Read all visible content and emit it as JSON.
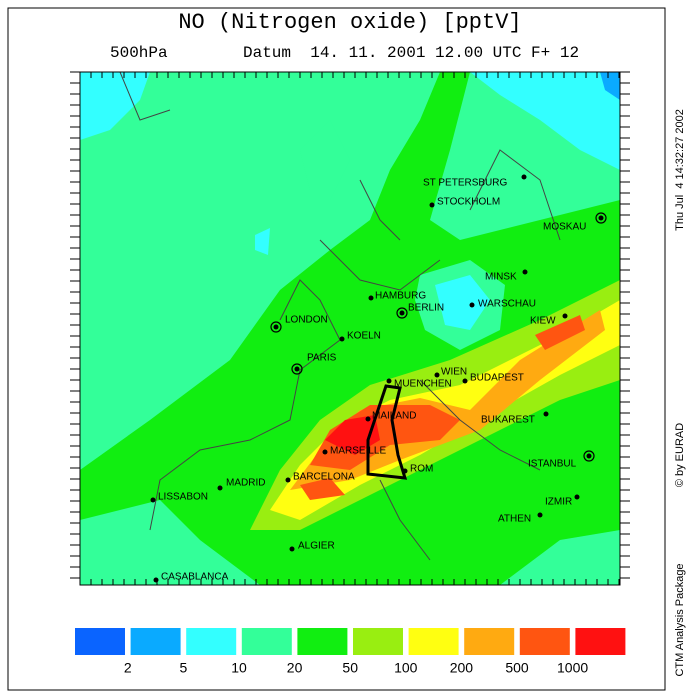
{
  "title": "NO (Nitrogen oxide) [pptV]",
  "subtitle": {
    "level": "500hPa",
    "datum": "Datum  14. 11. 2001 12.00 UTC F+ 12"
  },
  "side": {
    "timestamp": "Thu Jul  4 14:32:27 2002",
    "copyright": "© by EURAD",
    "package": "CTM Analysis Package"
  },
  "cities": [
    "ST PETERSBURG",
    "STOCKHOLM",
    "MOSKAU",
    "MINSK",
    "HAMBURG",
    "BERLIN",
    "WARSCHAU",
    "KIEW",
    "LONDON",
    "KOELN",
    "PARIS",
    "WIEN",
    "MUENCHEN",
    "BUDAPEST",
    "MAILAND",
    "BUKAREST",
    "MARSEILLE",
    "ISTANBUL",
    "ROM",
    "BARCELONA",
    "MADRID",
    "LISSABON",
    "IZMIR",
    "ATHEN",
    "ALGIER",
    "CASABLANCA"
  ],
  "legend": {
    "colors": [
      "#0a64ff",
      "#0aaaff",
      "#33ffff",
      "#33ff99",
      "#11ee11",
      "#99ee11",
      "#ffff11",
      "#ffaa11",
      "#ff5511",
      "#ff1111"
    ],
    "labels": [
      "2",
      "5",
      "10",
      "20",
      "50",
      "100",
      "200",
      "500",
      "1000"
    ]
  }
}
